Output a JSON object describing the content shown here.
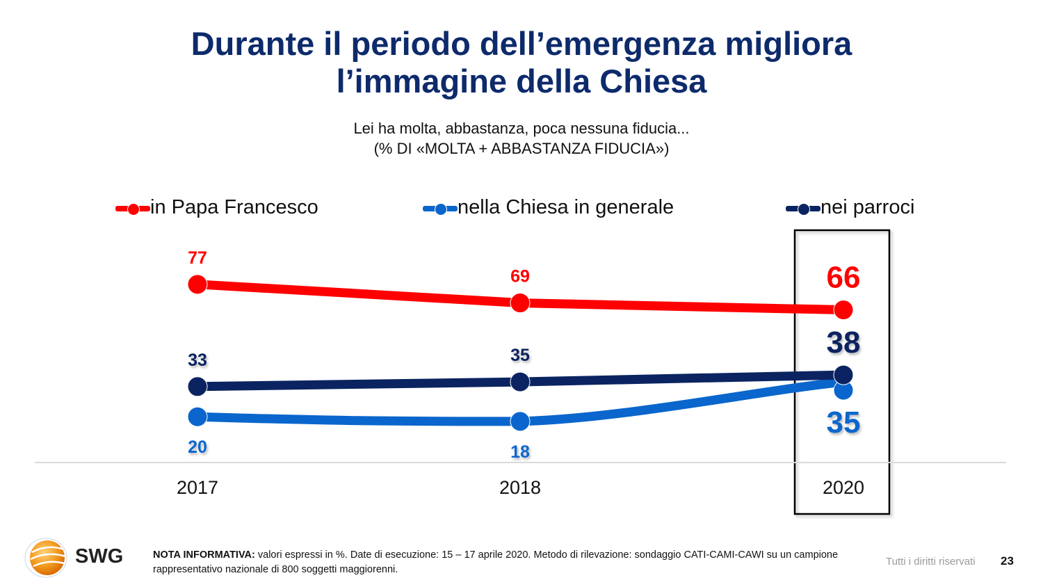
{
  "header": {
    "title_line1": "Durante il periodo dell’emergenza migliora",
    "title_line2": "l’immagine della Chiesa",
    "subtitle_line1": "Lei ha molta, abbastanza, poca nessuna fiducia...",
    "subtitle_line2": "(%  DI «MOLTA + ABBASTANZA FIDUCIA»)"
  },
  "colors": {
    "title": "#0d2a6b",
    "papa": "#ff0000",
    "chiesa": "#0a66cc",
    "parroci": "#0b2461",
    "axis": "#d9d9d9",
    "highlight_box": "#000000"
  },
  "chart_data": {
    "type": "line",
    "title": "Durante il periodo dell’emergenza migliora l’immagine della Chiesa",
    "subtitle": "Lei ha molta, abbastanza, poca nessuna fiducia... (% DI «MOLTA + ABBASTANZA FIDUCIA»)",
    "xlabel": "",
    "ylabel": "",
    "categories": [
      "2017",
      "2018",
      "2020"
    ],
    "series": [
      {
        "name": "in Papa Francesco",
        "color": "#ff0000",
        "values": [
          77,
          69,
          66
        ],
        "label_position": "above"
      },
      {
        "name": "nella Chiesa in generale",
        "color": "#0a66cc",
        "values": [
          20,
          18,
          35
        ],
        "label_position": "below"
      },
      {
        "name": "nei parroci",
        "color": "#0b2461",
        "values": [
          33,
          35,
          38
        ],
        "label_position": "above"
      }
    ],
    "ylim": [
      0,
      100
    ],
    "grid": false,
    "y_axis_visible": false,
    "legend_position": "top",
    "highlighted_category": "2020"
  },
  "footer": {
    "logo_text": "SWG",
    "note_label": "NOTA INFORMATIVA:",
    "note_text": " valori espressi in %. Date di esecuzione: 15 – 17 aprile 2020. Metodo di rilevazione: sondaggio CATI-CAMI-CAWI su un campione rappresentativo nazionale di 800 soggetti maggiorenni.",
    "rights": "Tutti i diritti riservati",
    "page_number": "23"
  }
}
